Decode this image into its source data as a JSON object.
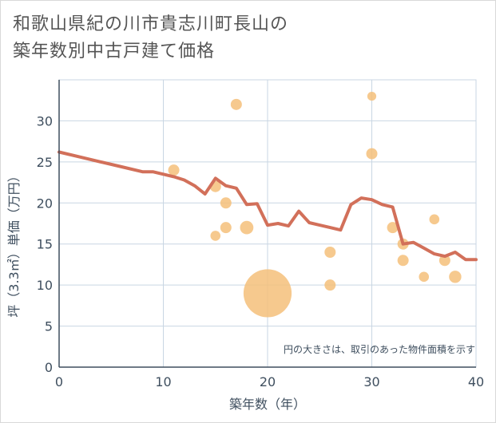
{
  "title_line1": "和歌山県紀の川市貴志川町長山の",
  "title_line2": "築年数別中古戸建て価格",
  "colors": {
    "line": "#d2705a",
    "bubble": "#f5c07a",
    "grid": "#c9d6e3",
    "axis": "#3f4f5f"
  },
  "chart_data": {
    "type": "scatter",
    "xlabel": "築年数（年）",
    "ylabel": "坪（3.3㎡）単価（万円）",
    "xlim": [
      0,
      40
    ],
    "ylim": [
      0,
      35
    ],
    "x_ticks": [
      0,
      10,
      20,
      30,
      40
    ],
    "y_ticks": [
      0,
      5,
      10,
      15,
      20,
      25,
      30
    ],
    "grid": true,
    "note": "円の大きさは、取引のあった物件面積を示す",
    "bubbles": [
      {
        "x": 11,
        "y": 24,
        "s": 1
      },
      {
        "x": 15,
        "y": 22,
        "s": 1
      },
      {
        "x": 15,
        "y": 16,
        "s": 0.9
      },
      {
        "x": 16,
        "y": 20,
        "s": 1
      },
      {
        "x": 16,
        "y": 17,
        "s": 1
      },
      {
        "x": 17,
        "y": 32,
        "s": 1
      },
      {
        "x": 18,
        "y": 17,
        "s": 1.2
      },
      {
        "x": 20,
        "y": 9,
        "s": 4.3
      },
      {
        "x": 26,
        "y": 14,
        "s": 1
      },
      {
        "x": 26,
        "y": 10,
        "s": 1
      },
      {
        "x": 30,
        "y": 33,
        "s": 0.8
      },
      {
        "x": 30,
        "y": 26,
        "s": 1
      },
      {
        "x": 32,
        "y": 17,
        "s": 1
      },
      {
        "x": 33,
        "y": 15,
        "s": 1
      },
      {
        "x": 33,
        "y": 13,
        "s": 1
      },
      {
        "x": 35,
        "y": 11,
        "s": 0.9
      },
      {
        "x": 36,
        "y": 18,
        "s": 0.9
      },
      {
        "x": 37,
        "y": 13,
        "s": 1
      },
      {
        "x": 38,
        "y": 11,
        "s": 1.1
      }
    ],
    "line": [
      [
        0,
        26.2
      ],
      [
        2,
        25.6
      ],
      [
        4,
        25.0
      ],
      [
        6,
        24.4
      ],
      [
        8,
        23.8
      ],
      [
        9,
        23.8
      ],
      [
        10,
        23.5
      ],
      [
        11,
        23.2
      ],
      [
        12,
        22.8
      ],
      [
        13,
        22.1
      ],
      [
        14,
        21.1
      ],
      [
        15,
        23.0
      ],
      [
        16,
        22.1
      ],
      [
        17,
        21.8
      ],
      [
        18,
        19.8
      ],
      [
        19,
        19.9
      ],
      [
        20,
        17.3
      ],
      [
        21,
        17.5
      ],
      [
        22,
        17.2
      ],
      [
        23,
        19.0
      ],
      [
        24,
        17.6
      ],
      [
        25,
        17.3
      ],
      [
        26,
        17.0
      ],
      [
        27,
        16.7
      ],
      [
        28,
        19.8
      ],
      [
        29,
        20.6
      ],
      [
        30,
        20.4
      ],
      [
        31,
        19.8
      ],
      [
        32,
        19.5
      ],
      [
        33,
        15.0
      ],
      [
        34,
        15.2
      ],
      [
        35,
        14.5
      ],
      [
        36,
        13.8
      ],
      [
        37,
        13.5
      ],
      [
        38,
        14.0
      ],
      [
        39,
        13.1
      ],
      [
        40,
        13.1
      ]
    ]
  }
}
